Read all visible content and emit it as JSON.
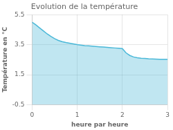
{
  "chart_data": {
    "type": "area",
    "title": "Evolution de la température",
    "xlabel": "heure par heure",
    "ylabel": "Température en °C",
    "x": [
      0.0,
      0.083,
      0.167,
      0.25,
      0.333,
      0.417,
      0.5,
      0.583,
      0.667,
      0.75,
      0.833,
      0.917,
      1.0,
      1.083,
      1.167,
      1.25,
      1.333,
      1.417,
      1.5,
      1.583,
      1.667,
      1.75,
      1.833,
      1.917,
      2.0,
      2.083,
      2.167,
      2.25,
      2.333,
      2.417,
      2.5,
      2.583,
      2.667,
      2.75,
      2.833,
      2.917,
      3.0
    ],
    "values": [
      5.0,
      4.82,
      4.62,
      4.42,
      4.22,
      4.05,
      3.9,
      3.78,
      3.7,
      3.64,
      3.6,
      3.55,
      3.5,
      3.47,
      3.44,
      3.42,
      3.4,
      3.38,
      3.36,
      3.34,
      3.32,
      3.3,
      3.28,
      3.26,
      3.24,
      2.95,
      2.78,
      2.68,
      2.63,
      2.6,
      2.58,
      2.56,
      2.55,
      2.54,
      2.53,
      2.52,
      2.52
    ],
    "color": "#4ab8d8",
    "xlim": [
      0,
      3
    ],
    "ylim": [
      -0.5,
      5.5
    ],
    "xticks": [
      0,
      1,
      2,
      3
    ],
    "yticks": [
      -0.5,
      1.5,
      3.5,
      5.5
    ],
    "grid": true
  }
}
